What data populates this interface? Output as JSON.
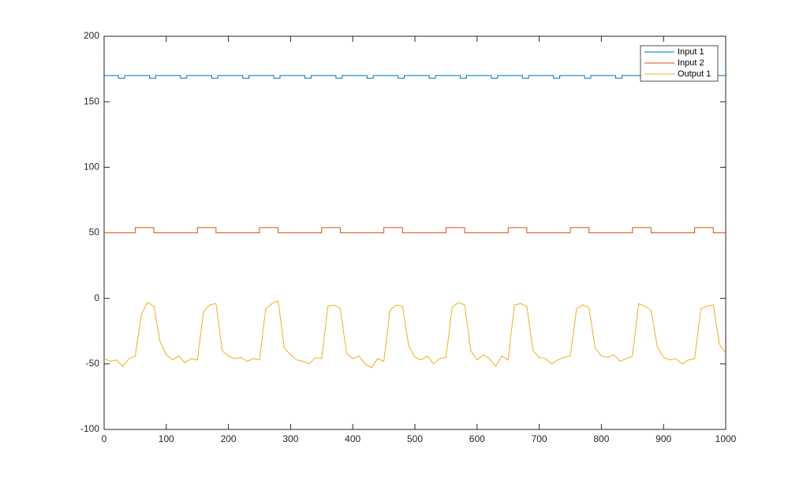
{
  "chart_data": {
    "type": "line",
    "xlim": [
      0,
      1000
    ],
    "ylim": [
      -100,
      200
    ],
    "xticks": [
      0,
      100,
      200,
      300,
      400,
      500,
      600,
      700,
      800,
      900,
      1000
    ],
    "yticks": [
      -100,
      -50,
      0,
      50,
      100,
      150,
      200
    ],
    "grid": false,
    "legend": "northeast",
    "series": [
      {
        "name": "Input 1",
        "color": "#0072BD",
        "x": [
          0,
          23,
          23,
          33,
          33,
          73,
          73,
          83,
          83,
          123,
          123,
          133,
          133,
          173,
          173,
          183,
          183,
          223,
          223,
          233,
          233,
          273,
          273,
          283,
          283,
          323,
          323,
          333,
          333,
          373,
          373,
          383,
          383,
          423,
          423,
          433,
          433,
          473,
          473,
          483,
          483,
          523,
          523,
          533,
          533,
          573,
          573,
          583,
          583,
          623,
          623,
          633,
          633,
          673,
          673,
          683,
          683,
          723,
          723,
          733,
          733,
          773,
          773,
          783,
          783,
          823,
          823,
          833,
          833,
          1000
        ],
        "values": [
          170,
          170,
          168,
          168,
          170,
          170,
          168,
          168,
          170,
          170,
          168,
          168,
          170,
          170,
          168,
          168,
          170,
          170,
          168,
          168,
          170,
          170,
          168,
          168,
          170,
          170,
          168,
          168,
          170,
          170,
          168,
          168,
          170,
          170,
          168,
          168,
          170,
          170,
          168,
          168,
          170,
          170,
          168,
          168,
          170,
          170,
          168,
          168,
          170,
          170,
          168,
          168,
          170,
          170,
          168,
          168,
          170,
          170,
          168,
          168,
          170,
          170,
          168,
          168,
          170,
          170,
          168,
          168,
          170,
          170
        ]
      },
      {
        "name": "Input 2",
        "color": "#D95319",
        "x": [
          0,
          50,
          50,
          80,
          80,
          150,
          150,
          180,
          180,
          250,
          250,
          280,
          280,
          350,
          350,
          380,
          380,
          450,
          450,
          480,
          480,
          550,
          550,
          580,
          580,
          650,
          650,
          680,
          680,
          750,
          750,
          780,
          780,
          850,
          850,
          880,
          880,
          950,
          950,
          980,
          980,
          1000
        ],
        "values": [
          50,
          50,
          54,
          54,
          50,
          50,
          54,
          54,
          50,
          50,
          54,
          54,
          50,
          50,
          54,
          54,
          50,
          50,
          54,
          54,
          50,
          50,
          54,
          54,
          50,
          50,
          54,
          54,
          50,
          50,
          54,
          54,
          50,
          50,
          54,
          54,
          50,
          50,
          54,
          54,
          50,
          50
        ]
      },
      {
        "name": "Output 1",
        "color": "#EDB120",
        "x": [
          0,
          10,
          20,
          30,
          40,
          50,
          60,
          70,
          80,
          90,
          100,
          110,
          120,
          130,
          140,
          150,
          160,
          170,
          180,
          190,
          200,
          210,
          220,
          230,
          240,
          250,
          260,
          270,
          280,
          290,
          300,
          310,
          320,
          330,
          340,
          350,
          360,
          370,
          380,
          390,
          400,
          410,
          420,
          430,
          440,
          450,
          460,
          470,
          480,
          490,
          500,
          510,
          520,
          530,
          540,
          550,
          560,
          570,
          580,
          590,
          600,
          610,
          620,
          630,
          640,
          650,
          660,
          670,
          680,
          690,
          700,
          710,
          720,
          730,
          740,
          750,
          760,
          770,
          780,
          790,
          800,
          810,
          820,
          830,
          840,
          850,
          860,
          870,
          880,
          890,
          900,
          910,
          920,
          930,
          940,
          950,
          960,
          970,
          980,
          990,
          1000
        ],
        "values": [
          -46,
          -48,
          -47,
          -52,
          -46,
          -44,
          -12,
          -3,
          -6,
          -33,
          -43,
          -47,
          -44,
          -49,
          -46,
          -47,
          -10,
          -5,
          -4,
          -40,
          -44,
          -46,
          -45,
          -48,
          -46,
          -47,
          -8,
          -4,
          -2,
          -38,
          -43,
          -47,
          -48,
          -50,
          -45,
          -46,
          -6,
          -5,
          -8,
          -42,
          -46,
          -44,
          -50,
          -53,
          -46,
          -48,
          -9,
          -5,
          -6,
          -36,
          -45,
          -47,
          -44,
          -50,
          -46,
          -45,
          -7,
          -3,
          -5,
          -40,
          -47,
          -43,
          -46,
          -52,
          -44,
          -47,
          -5,
          -4,
          -6,
          -40,
          -45,
          -46,
          -50,
          -47,
          -45,
          -44,
          -8,
          -5,
          -7,
          -38,
          -44,
          -45,
          -43,
          -48,
          -46,
          -44,
          -4,
          -6,
          -9,
          -37,
          -45,
          -47,
          -46,
          -50,
          -47,
          -46,
          -8,
          -6,
          -5,
          -35,
          -42
        ]
      }
    ]
  }
}
